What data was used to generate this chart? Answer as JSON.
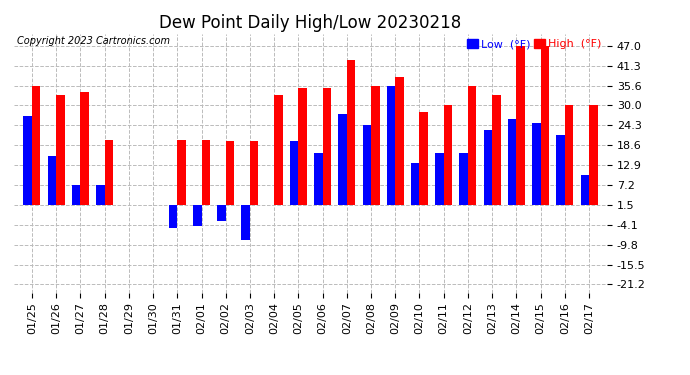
{
  "title": "Dew Point Daily High/Low 20230218",
  "copyright": "Copyright 2023 Cartronics.com",
  "dates": [
    "01/25",
    "01/26",
    "01/27",
    "01/28",
    "01/29",
    "01/30",
    "01/31",
    "02/01",
    "02/02",
    "02/03",
    "02/04",
    "02/05",
    "02/06",
    "02/07",
    "02/08",
    "02/09",
    "02/10",
    "02/11",
    "02/12",
    "02/13",
    "02/14",
    "02/15",
    "02/16",
    "02/17"
  ],
  "high": [
    35.6,
    33.0,
    33.8,
    20.0,
    1.5,
    1.5,
    20.0,
    20.0,
    19.8,
    19.8,
    33.0,
    35.0,
    35.0,
    43.0,
    35.6,
    38.0,
    28.0,
    30.0,
    35.6,
    33.0,
    47.0,
    47.0,
    30.0,
    30.0
  ],
  "low": [
    27.0,
    15.5,
    7.2,
    7.2,
    1.5,
    1.5,
    -5.0,
    -4.5,
    -3.0,
    -8.5,
    1.5,
    19.8,
    16.5,
    27.5,
    24.3,
    35.6,
    13.5,
    16.5,
    16.5,
    23.0,
    26.0,
    25.0,
    21.5,
    10.0
  ],
  "yticks": [
    -21.2,
    -15.5,
    -9.8,
    -4.1,
    1.5,
    7.2,
    12.9,
    18.6,
    24.3,
    30.0,
    35.6,
    41.3,
    47.0
  ],
  "ylim_bottom": -23.5,
  "ylim_top": 50.5,
  "bar_width": 0.35,
  "high_color": "#FF0000",
  "low_color": "#0000FF",
  "bg_color": "#FFFFFF",
  "grid_color": "#BBBBBB",
  "title_fontsize": 12,
  "tick_fontsize": 8,
  "baseline": 1.5,
  "xlim_left": -0.75,
  "xlim_right": 23.75
}
